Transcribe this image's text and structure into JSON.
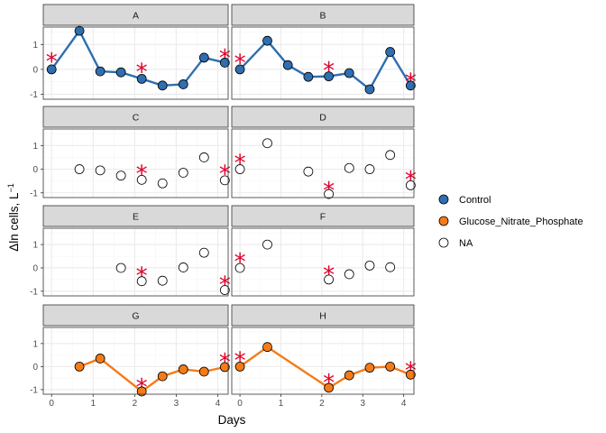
{
  "colors": {
    "Control": "#2f6eb0",
    "Glucose_Nitrate_Phosphate": "#f57b17",
    "NA": "#ffffff",
    "star": "#e1002a",
    "strip": "#d9d9d9",
    "grid_major": "#ebebeb",
    "grid_minor": "#f5f5f5"
  },
  "chart_data": {
    "type": "scatter",
    "facet_layout": "2 columns x 4 rows, shared axes",
    "xlabel": "Days",
    "ylabel_main": "Δln cells, L",
    "ylabel_sup": "−1",
    "xlim": [
      -0.2,
      4.25
    ],
    "ylim": [
      -1.2,
      1.7
    ],
    "x_ticks": [
      0,
      1,
      2,
      3,
      4
    ],
    "y_ticks": [
      -1,
      0,
      1
    ],
    "y_tick_labels": [
      "-1",
      "0",
      "1"
    ],
    "grid": true,
    "legend_position": "right",
    "legend": [
      {
        "label": "Control",
        "fill": "#2f6eb0"
      },
      {
        "label": "Glucose_Nitrate_Phosphate",
        "fill": "#f57b17"
      },
      {
        "label": "NA",
        "fill": "#ffffff"
      }
    ],
    "panels": [
      {
        "label": "A",
        "group": "Control",
        "x": [
          0,
          0.67,
          1.17,
          1.67,
          2.17,
          2.67,
          3.17,
          3.67,
          4.17
        ],
        "y": [
          0.0,
          1.55,
          -0.08,
          -0.12,
          -0.38,
          -0.65,
          -0.6,
          0.47,
          0.27
        ],
        "stars": [
          [
            0,
            0.35
          ],
          [
            2.17,
            -0.05
          ],
          [
            4.17,
            0.5
          ]
        ]
      },
      {
        "label": "B",
        "group": "Control",
        "x": [
          0,
          0.67,
          1.17,
          1.67,
          2.17,
          2.67,
          3.17,
          3.67,
          4.17
        ],
        "y": [
          0.0,
          1.15,
          0.17,
          -0.3,
          -0.28,
          -0.15,
          -0.8,
          0.7,
          -0.65
        ],
        "stars": [
          [
            0,
            0.3
          ],
          [
            2.17,
            0.0
          ],
          [
            4.17,
            -0.45
          ]
        ]
      },
      {
        "label": "C",
        "group": "NA",
        "x": [
          0.67,
          1.17,
          1.67,
          2.17,
          2.67,
          3.17,
          3.67,
          4.17
        ],
        "y": [
          0.0,
          -0.05,
          -0.27,
          -0.45,
          -0.6,
          -0.15,
          0.5,
          -0.47
        ],
        "stars": [
          [
            2.17,
            -0.15
          ],
          [
            4.17,
            -0.15
          ]
        ]
      },
      {
        "label": "D",
        "group": "NA",
        "x": [
          0,
          0.67,
          1.67,
          2.17,
          2.67,
          3.17,
          3.67,
          4.17
        ],
        "y": [
          0.0,
          1.1,
          -0.1,
          -1.05,
          0.05,
          0.0,
          0.6,
          -0.68
        ],
        "stars": [
          [
            0,
            0.3
          ],
          [
            2.17,
            -0.85
          ],
          [
            4.17,
            -0.4
          ]
        ]
      },
      {
        "label": "E",
        "group": "NA",
        "x": [
          1.67,
          2.17,
          2.67,
          3.17,
          3.67,
          4.17
        ],
        "y": [
          0.0,
          -0.57,
          -0.55,
          0.02,
          0.65,
          -0.95
        ],
        "stars": [
          [
            2.17,
            -0.3
          ],
          [
            4.17,
            -0.68
          ]
        ]
      },
      {
        "label": "F",
        "group": "NA",
        "x": [
          0,
          0.67,
          2.17,
          2.67,
          3.17,
          3.67
        ],
        "y": [
          0.0,
          1.0,
          -0.5,
          -0.27,
          0.1,
          0.03
        ],
        "stars": [
          [
            0,
            0.3
          ],
          [
            2.17,
            -0.25
          ]
        ]
      },
      {
        "label": "G",
        "group": "Glucose_Nitrate_Phosphate",
        "x": [
          0.67,
          1.17,
          2.17,
          2.67,
          3.17,
          3.67,
          4.17
        ],
        "y": [
          0.0,
          0.35,
          -1.08,
          -0.42,
          -0.12,
          -0.22,
          -0.02
        ],
        "stars": [
          [
            2.17,
            -0.85
          ],
          [
            4.17,
            0.25
          ]
        ]
      },
      {
        "label": "H",
        "group": "Glucose_Nitrate_Phosphate",
        "x": [
          0,
          0.67,
          2.17,
          2.67,
          3.17,
          3.67,
          4.17
        ],
        "y": [
          0.0,
          0.85,
          -0.92,
          -0.38,
          -0.05,
          0.0,
          -0.35
        ],
        "stars": [
          [
            0,
            0.3
          ],
          [
            2.17,
            -0.65
          ],
          [
            4.17,
            -0.12
          ]
        ]
      }
    ]
  }
}
